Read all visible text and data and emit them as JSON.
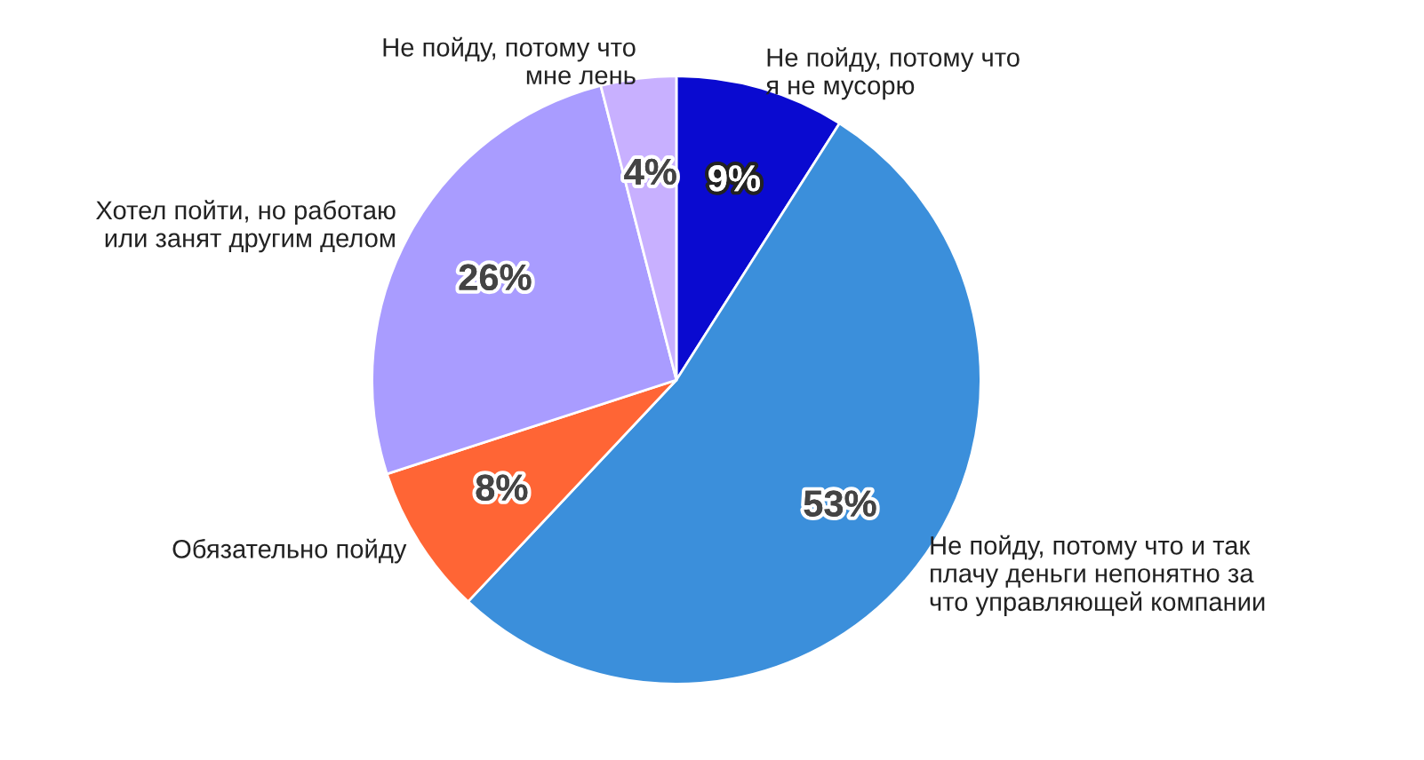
{
  "chart_data": {
    "type": "pie",
    "categories": [
      "Не пойду, потому что\nя не мусорю",
      "Не пойду, потому что и так\nплачу деньги непонятно за\nчто управляющей компании",
      "Обязательно пойду",
      "Хотел пойти, но работаю\nили занят другим делом",
      "Не пойду, потому что\nмне лень"
    ],
    "values": [
      9,
      53,
      8,
      26,
      4
    ],
    "value_labels": [
      "9%",
      "53%",
      "8%",
      "26%",
      "4%"
    ],
    "colors": [
      "#0a0ad0",
      "#3b8fdb",
      "#ff6535",
      "#a99cff",
      "#c8b0ff"
    ],
    "legend": false
  }
}
